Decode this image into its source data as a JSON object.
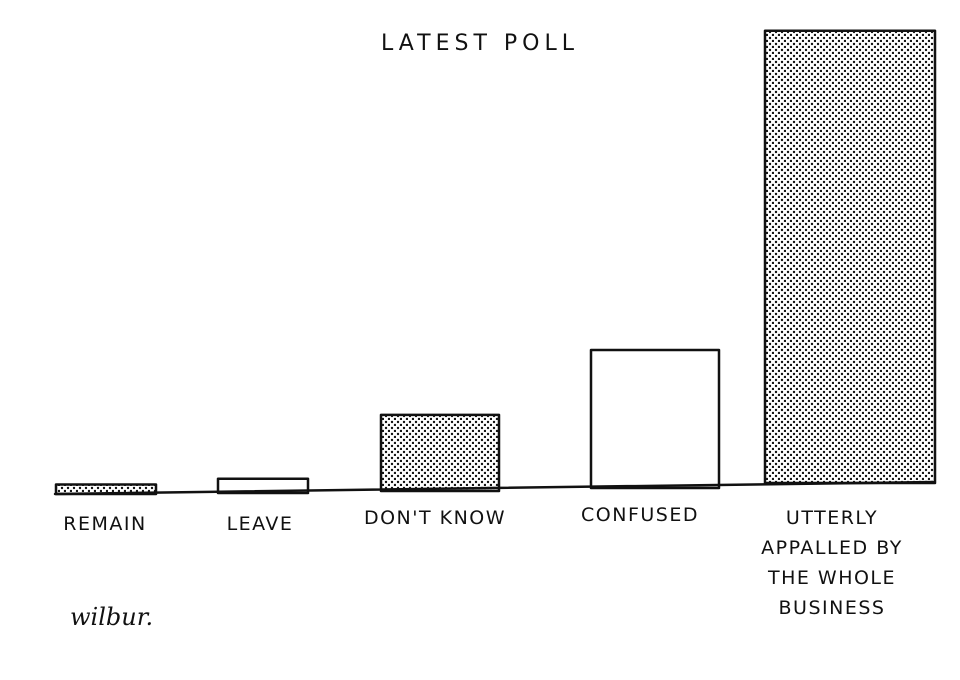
{
  "chart_data": {
    "type": "bar",
    "title": "LATEST POLL",
    "categories": [
      "REMAIN",
      "LEAVE",
      "DON'T KNOW",
      "CONFUSED",
      "UTTERLY APPALLED BY THE WHOLE BUSINESS"
    ],
    "category_lines": [
      [
        "REMAIN"
      ],
      [
        "LEAVE"
      ],
      [
        "DON'T KNOW"
      ],
      [
        "CONFUSED"
      ],
      [
        "UTTERLY",
        "APPALLED BY",
        "THE WHOLE",
        "BUSINESS"
      ]
    ],
    "values": [
      2,
      3,
      16,
      29,
      95
    ],
    "ylim": [
      0,
      100
    ],
    "fills": [
      "dotted",
      "plain",
      "dotted",
      "plain",
      "dotted"
    ],
    "grid": false,
    "legend": "none"
  },
  "signature": "wilbur.",
  "colors": {
    "ink": "#111111",
    "paper": "#ffffff"
  }
}
